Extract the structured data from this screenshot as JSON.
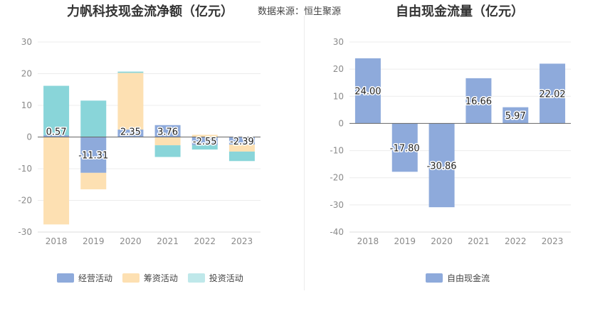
{
  "header": {
    "left_title": "力帆科技现金流净额（亿元）",
    "right_title": "自由现金流量（亿元）",
    "source": "数据来源：恒生聚源"
  },
  "colors": {
    "operating": "#8eaadb",
    "financing": "#fde0b2",
    "investing": "#89d5d9",
    "free_cf": "#8eaadb"
  },
  "chart_data": [
    {
      "type": "bar",
      "stacked": true,
      "title": "力帆科技现金流净额（亿元）",
      "categories": [
        "2018",
        "2019",
        "2020",
        "2021",
        "2022",
        "2023"
      ],
      "ylim": [
        -30,
        30
      ],
      "yticks": [
        30,
        20,
        10,
        0,
        -10,
        -20,
        -30
      ],
      "grid": true,
      "legend_position": "bottom",
      "series": [
        {
          "name": "经营活动",
          "values": [
            0.57,
            -11.31,
            2.35,
            3.76,
            -2.55,
            -2.39
          ]
        },
        {
          "name": "筹资活动",
          "values": [
            -27.6,
            -5.2,
            17.9,
            -2.6,
            0.7,
            -2.2
          ]
        },
        {
          "name": "投资活动",
          "values": [
            15.6,
            11.5,
            0.4,
            -3.7,
            -1.4,
            -3.0
          ]
        }
      ],
      "data_labels": [
        "0.57",
        "-11.31",
        "2.35",
        "3.76",
        "-2.55",
        "-2.39"
      ]
    },
    {
      "type": "bar",
      "title": "自由现金流量（亿元）",
      "categories": [
        "2018",
        "2019",
        "2020",
        "2021",
        "2022",
        "2023"
      ],
      "ylim": [
        -40,
        30
      ],
      "yticks": [
        30,
        20,
        10,
        0,
        -10,
        -20,
        -30,
        -40
      ],
      "grid": true,
      "legend_position": "bottom",
      "series": [
        {
          "name": "自由现金流",
          "values": [
            24.0,
            -17.8,
            -30.86,
            16.66,
            5.97,
            22.02
          ]
        }
      ],
      "data_labels": [
        "24.00",
        "-17.80",
        "-30.86",
        "16.66",
        "5.97",
        "22.02"
      ]
    }
  ]
}
